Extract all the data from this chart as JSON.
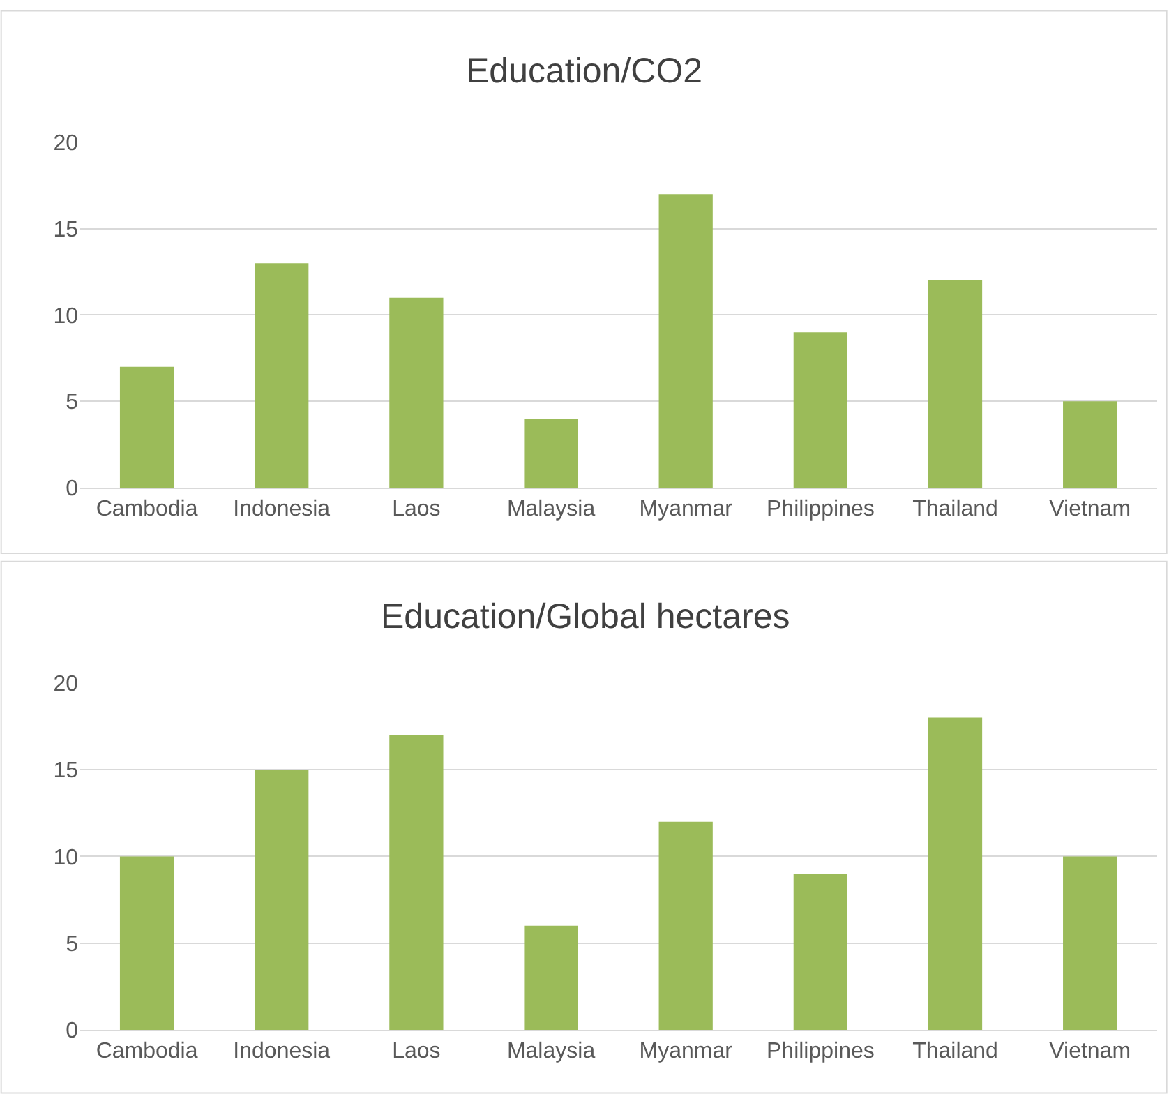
{
  "chart_data": [
    {
      "type": "bar",
      "title": "Education/CO2",
      "categories": [
        "Cambodia",
        "Indonesia",
        "Laos",
        "Malaysia",
        "Myanmar",
        "Philippines",
        "Thailand",
        "Vietnam"
      ],
      "values": [
        7,
        13,
        11,
        4,
        17,
        9,
        12,
        5
      ],
      "color": "#9bbb59",
      "ylim": [
        0,
        20
      ],
      "yticks": [
        0,
        5,
        10,
        15,
        20
      ],
      "grid": "y"
    },
    {
      "type": "bar",
      "title": "Education/Global hectares",
      "categories": [
        "Cambodia",
        "Indonesia",
        "Laos",
        "Malaysia",
        "Myanmar",
        "Philippines",
        "Thailand",
        "Vietnam"
      ],
      "values": [
        10,
        15,
        17,
        6,
        12,
        9,
        18,
        10
      ],
      "color": "#9bbb59",
      "ylim": [
        0,
        20
      ],
      "yticks": [
        0,
        5,
        10,
        15,
        20
      ],
      "grid": "y"
    }
  ]
}
